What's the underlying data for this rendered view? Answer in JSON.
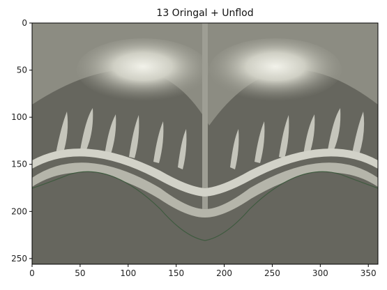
{
  "chart_data": {
    "type": "heatmap",
    "title": "13  Oringal + Unflod",
    "xlabel": "",
    "ylabel": "",
    "xlim": [
      0,
      360
    ],
    "ylim": [
      256,
      0
    ],
    "x_ticks": [
      0,
      50,
      100,
      150,
      200,
      250,
      300,
      350
    ],
    "y_ticks": [
      0,
      50,
      100,
      150,
      200,
      250
    ],
    "grid": false,
    "colors": {
      "background_fill": "#66665e",
      "mid_gray": "#8a8a80",
      "light_gray": "#bdbdb2",
      "highlight": "#ecece4",
      "edge_green": "#3f5a3f"
    }
  }
}
